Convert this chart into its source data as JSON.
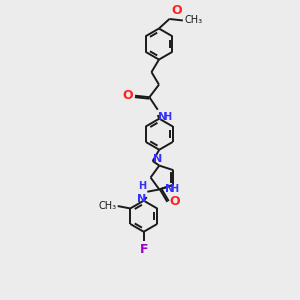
{
  "bg_color": "#ececec",
  "bond_color": "#1a1a1a",
  "N_color": "#3030ff",
  "O_color": "#ff2020",
  "F_color": "#9900cc",
  "line_width": 1.4,
  "font_size": 8,
  "fig_size": [
    3.0,
    3.0
  ],
  "dpi": 100,
  "xlim": [
    0,
    10
  ],
  "ylim": [
    0,
    10
  ]
}
